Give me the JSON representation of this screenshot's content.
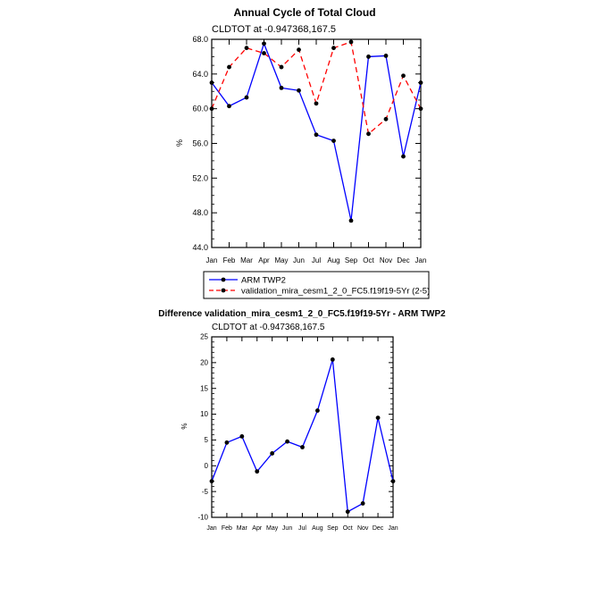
{
  "chart_data": [
    {
      "type": "line",
      "title": "Annual Cycle of Total Cloud",
      "subtitle": "CLDTOT at -0.947368,167.5",
      "xlabel": "",
      "ylabel": "%",
      "categories": [
        "Jan",
        "Feb",
        "Mar",
        "Apr",
        "May",
        "Jun",
        "Jul",
        "Aug",
        "Sep",
        "Oct",
        "Nov",
        "Dec",
        "Jan"
      ],
      "ylim": [
        44,
        68
      ],
      "yticks": [
        "44.0",
        "48.0",
        "52.0",
        "56.0",
        "60.0",
        "64.0",
        "68.0"
      ],
      "legend_position": "below",
      "series": [
        {
          "name": "ARM TWP2",
          "color": "#0000ff",
          "dash": "solid",
          "values": [
            63.0,
            60.3,
            61.3,
            67.5,
            62.4,
            62.1,
            57.0,
            56.3,
            47.1,
            66.0,
            66.1,
            54.5,
            63.0
          ]
        },
        {
          "name": "validation_mira_cesm1_2_0_FC5.f19f19-5Yr (2-5)",
          "color": "#ff0000",
          "dash": "dashed",
          "values": [
            60.0,
            64.8,
            67.0,
            66.4,
            64.8,
            66.8,
            60.6,
            67.0,
            67.7,
            57.1,
            58.8,
            63.8,
            60.0
          ]
        }
      ]
    },
    {
      "type": "line",
      "title": "Difference validation_mira_cesm1_2_0_FC5.f19f19-5Yr - ARM TWP2",
      "subtitle": "CLDTOT at -0.947368,167.5",
      "xlabel": "",
      "ylabel": "%",
      "categories": [
        "Jan",
        "Feb",
        "Mar",
        "Apr",
        "May",
        "Jun",
        "Jul",
        "Aug",
        "Sep",
        "Oct",
        "Nov",
        "Dec",
        "Jan"
      ],
      "ylim": [
        -10,
        25
      ],
      "yticks": [
        "-10",
        "-5",
        "0",
        "5",
        "10",
        "15",
        "20",
        "25"
      ],
      "series": [
        {
          "color": "#0000ff",
          "values": [
            -3.0,
            4.5,
            5.7,
            -1.1,
            2.4,
            4.7,
            3.6,
            10.7,
            20.6,
            -8.9,
            -7.3,
            9.3,
            -3.0
          ]
        }
      ]
    }
  ]
}
